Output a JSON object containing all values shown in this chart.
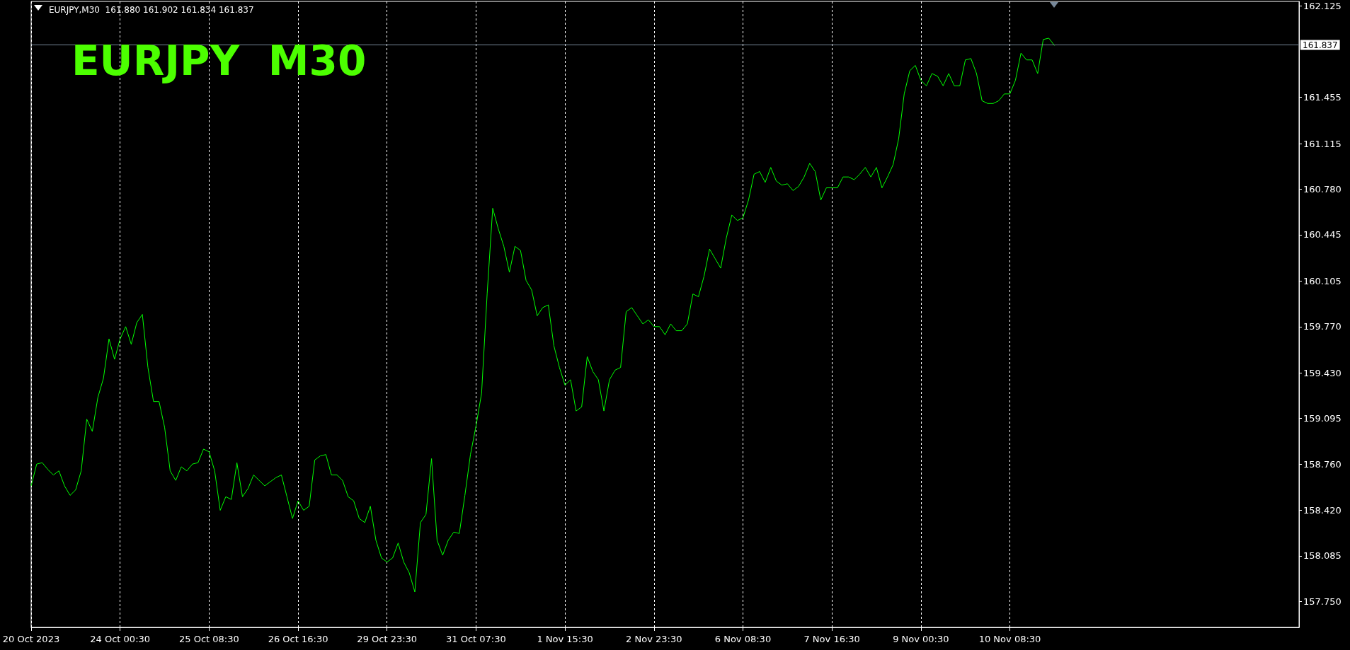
{
  "chart_data": {
    "type": "line",
    "title": "EURJPY  M30",
    "subtitle": "EURJPY,M30  161.880 161.902 161.834 161.837",
    "categories": [
      "20 Oct 2023",
      null,
      null,
      null,
      null,
      null,
      null,
      null,
      null,
      null,
      null,
      null,
      null,
      null,
      null,
      null,
      "24 Oct 00:30",
      null,
      null,
      null,
      null,
      null,
      null,
      null,
      null,
      null,
      null,
      null,
      null,
      null,
      null,
      null,
      "25 Oct 08:30",
      null,
      null,
      null,
      null,
      null,
      null,
      null,
      null,
      null,
      null,
      null,
      null,
      null,
      null,
      null,
      "26 Oct 16:30",
      null,
      null,
      null,
      null,
      null,
      null,
      null,
      null,
      null,
      null,
      null,
      null,
      null,
      null,
      null,
      "29 Oct 23:30",
      null,
      null,
      null,
      null,
      null,
      null,
      null,
      null,
      null,
      null,
      null,
      null,
      null,
      null,
      null,
      "31 Oct 07:30",
      null,
      null,
      null,
      null,
      null,
      null,
      null,
      null,
      null,
      null,
      null,
      null,
      null,
      null,
      null,
      "1 Nov 15:30",
      null,
      null,
      null,
      null,
      null,
      null,
      null,
      null,
      null,
      null,
      null,
      null,
      null,
      null,
      null,
      "2 Nov 23:30",
      null,
      null,
      null,
      null,
      null,
      null,
      null,
      null,
      null,
      null,
      null,
      null,
      null,
      null,
      null,
      "6 Nov 08:30",
      null,
      null,
      null,
      null,
      null,
      null,
      null,
      null,
      null,
      null,
      null,
      null,
      null,
      null,
      null,
      "7 Nov 16:30",
      null,
      null,
      null,
      null,
      null,
      null,
      null,
      null,
      null,
      null,
      null,
      null,
      null,
      null,
      null,
      "9 Nov 00:30",
      null,
      null,
      null,
      null,
      null,
      null,
      null,
      null,
      null,
      null,
      null,
      null,
      null,
      null,
      null,
      "10 Nov 08:30",
      null,
      null,
      null,
      null,
      null,
      null,
      null,
      null,
      null,
      null,
      null,
      null,
      null,
      null,
      null,
      null,
      null,
      null,
      null,
      null,
      null,
      null,
      null,
      null,
      null,
      null,
      null,
      null,
      null,
      null,
      null,
      null,
      null,
      null,
      null,
      null,
      null,
      null,
      null,
      null,
      null,
      null,
      null,
      null,
      null,
      null,
      null,
      null,
      null,
      null,
      null,
      null
    ],
    "series": [
      {
        "color": "#00ff00",
        "values": [
          158.6,
          158.76,
          158.77,
          158.72,
          158.68,
          158.71,
          158.6,
          158.53,
          158.57,
          158.71,
          159.09,
          159.0,
          159.25,
          159.39,
          159.68,
          159.53,
          159.68,
          159.77,
          159.64,
          159.8,
          159.86,
          159.47,
          159.22,
          159.22,
          159.03,
          158.71,
          158.64,
          158.74,
          158.71,
          158.76,
          158.77,
          158.87,
          158.85,
          158.71,
          158.42,
          158.52,
          158.5,
          158.77,
          158.52,
          158.58,
          158.68,
          158.64,
          158.6,
          158.63,
          158.66,
          158.68,
          158.52,
          158.36,
          158.49,
          158.42,
          158.45,
          158.79,
          158.82,
          158.83,
          158.68,
          158.68,
          158.64,
          158.52,
          158.49,
          158.36,
          158.33,
          158.45,
          158.2,
          158.07,
          158.04,
          158.07,
          158.18,
          158.04,
          157.96,
          157.82,
          158.33,
          158.39,
          158.8,
          158.2,
          158.09,
          158.2,
          158.26,
          158.25,
          158.53,
          158.83,
          159.04,
          159.28,
          160.01,
          160.64,
          160.49,
          160.36,
          160.17,
          160.36,
          160.33,
          160.11,
          160.04,
          159.85,
          159.91,
          159.93,
          159.63,
          159.47,
          159.34,
          159.38,
          159.15,
          159.18,
          159.55,
          159.44,
          159.38,
          159.15,
          159.38,
          159.45,
          159.47,
          159.88,
          159.91,
          159.85,
          159.79,
          159.82,
          159.77,
          159.77,
          159.71,
          159.79,
          159.74,
          159.74,
          159.79,
          160.01,
          159.99,
          160.14,
          160.34,
          160.27,
          160.2,
          160.42,
          160.59,
          160.55,
          160.57,
          160.7,
          160.89,
          160.91,
          160.83,
          160.94,
          160.84,
          160.81,
          160.82,
          160.77,
          160.8,
          160.87,
          160.97,
          160.91,
          160.7,
          160.79,
          160.79,
          160.79,
          160.87,
          160.87,
          160.85,
          160.89,
          160.94,
          160.87,
          160.94,
          160.79,
          160.87,
          160.96,
          161.15,
          161.48,
          161.65,
          161.69,
          161.58,
          161.54,
          161.63,
          161.61,
          161.54,
          161.63,
          161.54,
          161.54,
          161.73,
          161.74,
          161.63,
          161.43,
          161.41,
          161.41,
          161.43,
          161.48,
          161.48,
          161.58,
          161.78,
          161.73,
          161.73,
          161.63,
          161.88,
          161.89,
          161.837,
          null,
          null,
          null,
          null,
          null,
          null,
          null,
          null,
          null,
          null,
          null,
          null,
          null,
          null,
          null,
          null,
          null,
          null,
          null,
          null,
          null,
          null,
          null,
          null,
          null,
          null,
          null,
          null,
          null,
          null,
          null,
          null,
          null,
          null,
          null,
          null,
          null,
          null,
          null,
          null,
          null,
          null,
          null,
          null
        ]
      }
    ],
    "ylim": [
      157.56,
      162.16
    ],
    "yticks": [
      {
        "value": 157.75,
        "label": "157.750"
      },
      {
        "value": 158.085,
        "label": "158.085"
      },
      {
        "value": 158.42,
        "label": "158.420"
      },
      {
        "value": 158.76,
        "label": "158.760"
      },
      {
        "value": 159.095,
        "label": "159.095"
      },
      {
        "value": 159.43,
        "label": "159.430"
      },
      {
        "value": 159.77,
        "label": "159.770"
      },
      {
        "value": 160.105,
        "label": "160.105"
      },
      {
        "value": 160.445,
        "label": "160.445"
      },
      {
        "value": 160.78,
        "label": "160.780"
      },
      {
        "value": 161.115,
        "label": "161.115"
      },
      {
        "value": 161.455,
        "label": "161.455"
      },
      {
        "value": 162.125,
        "label": "162.125"
      }
    ],
    "ref_lines": [
      {
        "axis": "y",
        "value": 161.837,
        "label": "161.837",
        "color": "#778899"
      }
    ],
    "grid": "x",
    "marker": "none",
    "line_style": "solid"
  }
}
